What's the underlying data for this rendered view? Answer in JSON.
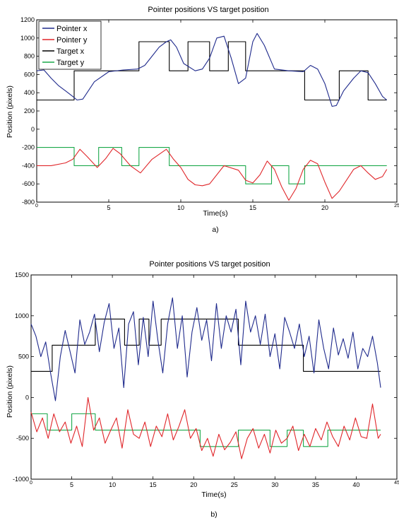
{
  "chart_data": [
    {
      "type": "line",
      "title": "Pointer positions VS target position",
      "xlabel": "Time(s)",
      "ylabel": "Position (pixels)",
      "xlim": [
        0,
        25
      ],
      "ylim": [
        -800,
        1200
      ],
      "xticks": [
        0,
        5,
        10,
        15,
        20,
        25
      ],
      "yticks": [
        -800,
        -600,
        -400,
        -200,
        0,
        200,
        400,
        600,
        800,
        1000,
        1200
      ],
      "grid": false,
      "legend": "top-left",
      "caption": "a)",
      "series": [
        {
          "name": "Pointer x",
          "color": "#1f2a8c",
          "x": [
            0,
            0.5,
            1,
            1.5,
            2,
            2.5,
            2.8,
            3.2,
            4,
            5,
            6,
            7,
            7.5,
            8,
            8.5,
            9,
            9.3,
            9.7,
            10.2,
            11,
            11.5,
            12,
            12.5,
            13,
            13.5,
            14,
            14.5,
            15,
            15.3,
            15.8,
            16.5,
            17.5,
            18.5,
            19,
            19.5,
            20,
            20.5,
            20.8,
            21.3,
            22,
            22.5,
            23,
            23.5,
            24,
            24.3
          ],
          "values": [
            640,
            650,
            560,
            480,
            420,
            360,
            320,
            330,
            520,
            630,
            650,
            660,
            700,
            800,
            900,
            960,
            980,
            900,
            720,
            640,
            660,
            780,
            1000,
            1020,
            780,
            500,
            560,
            960,
            1050,
            920,
            660,
            640,
            630,
            700,
            660,
            500,
            250,
            260,
            420,
            560,
            640,
            620,
            500,
            360,
            320
          ]
        },
        {
          "name": "Pointer y",
          "color": "#e0262a",
          "x": [
            0,
            1,
            2,
            2.5,
            3,
            3.5,
            4.2,
            4.8,
            5.3,
            5.8,
            6.5,
            7.2,
            8,
            9,
            9.5,
            10,
            10.5,
            11,
            11.5,
            12,
            13,
            14,
            14.5,
            15,
            15.5,
            16,
            16.5,
            17,
            17.5,
            18,
            18.5,
            19,
            19.5,
            20,
            20.5,
            21,
            22,
            22.5,
            23,
            23.5,
            24,
            24.3
          ],
          "values": [
            -400,
            -400,
            -370,
            -330,
            -220,
            -300,
            -420,
            -320,
            -210,
            -270,
            -400,
            -480,
            -330,
            -220,
            -330,
            -420,
            -550,
            -610,
            -620,
            -600,
            -400,
            -450,
            -560,
            -590,
            -500,
            -350,
            -440,
            -630,
            -780,
            -650,
            -440,
            -340,
            -380,
            -580,
            -760,
            -680,
            -440,
            -400,
            -480,
            -550,
            -520,
            -440
          ]
        },
        {
          "name": "Target x",
          "color": "#000000",
          "x": [
            0,
            2.6,
            2.6,
            7.1,
            7.1,
            9.2,
            9.2,
            10.5,
            10.5,
            12,
            12,
            13.3,
            13.3,
            14.5,
            14.5,
            18.6,
            18.6,
            21,
            21,
            23,
            23,
            24.3
          ],
          "values": [
            320,
            320,
            640,
            640,
            960,
            960,
            640,
            640,
            960,
            960,
            640,
            640,
            960,
            960,
            640,
            640,
            320,
            320,
            640,
            640,
            320,
            320
          ]
        },
        {
          "name": "Target y",
          "color": "#1aa84a",
          "x": [
            0,
            2.6,
            2.6,
            4.3,
            4.3,
            5.9,
            5.9,
            7.1,
            7.1,
            9.2,
            9.2,
            10.5,
            10.5,
            12,
            12,
            13.3,
            13.3,
            14.5,
            14.5,
            16.3,
            16.3,
            17.5,
            17.5,
            18.6,
            18.6,
            21,
            21,
            24.3
          ],
          "values": [
            -200,
            -200,
            -400,
            -400,
            -200,
            -200,
            -400,
            -400,
            -200,
            -200,
            -400,
            -400,
            -400,
            -400,
            -400,
            -400,
            -400,
            -400,
            -600,
            -600,
            -400,
            -400,
            -600,
            -600,
            -400,
            -400,
            -400,
            -400
          ]
        }
      ]
    },
    {
      "type": "line",
      "title": "Pointer positions VS target position",
      "xlabel": "Time(s)",
      "ylabel": "Position (pixels)",
      "xlim": [
        0,
        45
      ],
      "ylim": [
        -1000,
        1500
      ],
      "xticks": [
        0,
        5,
        10,
        15,
        20,
        25,
        30,
        35,
        40,
        45
      ],
      "yticks": [
        -1000,
        -500,
        0,
        500,
        1000,
        1500
      ],
      "grid": false,
      "caption": "b)",
      "series": [
        {
          "name": "Pointer x",
          "color": "#1f2a8c",
          "x": [
            0,
            0.6,
            1.2,
            1.8,
            2.4,
            3,
            3.6,
            4.2,
            4.8,
            5.4,
            6,
            6.6,
            7.2,
            7.8,
            8.4,
            9,
            9.6,
            10.2,
            10.8,
            11.4,
            12,
            12.6,
            13.2,
            13.8,
            14.4,
            15,
            15.6,
            16.2,
            16.8,
            17.4,
            18,
            18.6,
            19.2,
            19.8,
            20.4,
            21,
            21.6,
            22.2,
            22.8,
            23.4,
            24,
            24.6,
            25.2,
            25.8,
            26.4,
            27,
            27.6,
            28.2,
            28.8,
            29.4,
            30,
            30.6,
            31.2,
            31.8,
            32.4,
            33,
            33.6,
            34.2,
            34.8,
            35.4,
            36,
            36.6,
            37.2,
            37.8,
            38.4,
            39,
            39.6,
            40.2,
            40.8,
            41.4,
            42,
            42.6,
            43
          ],
          "values": [
            900,
            750,
            500,
            680,
            300,
            -40,
            500,
            820,
            560,
            300,
            950,
            650,
            800,
            1020,
            560,
            920,
            1150,
            600,
            850,
            120,
            900,
            1050,
            400,
            980,
            500,
            1180,
            700,
            300,
            900,
            1220,
            600,
            1000,
            250,
            800,
            1100,
            700,
            950,
            450,
            1150,
            600,
            1000,
            800,
            1080,
            400,
            1180,
            800,
            1000,
            650,
            1020,
            500,
            780,
            350,
            980,
            800,
            600,
            900,
            500,
            750,
            300,
            950,
            600,
            350,
            850,
            520,
            720,
            480,
            800,
            350,
            600,
            500,
            750,
            420,
            120
          ]
        },
        {
          "name": "Pointer y",
          "color": "#e0262a",
          "x": [
            0,
            0.7,
            1.4,
            2.1,
            2.8,
            3.5,
            4.2,
            4.9,
            5.6,
            6.3,
            7,
            7.7,
            8.4,
            9.1,
            9.8,
            10.5,
            11.2,
            11.9,
            12.6,
            13.3,
            14,
            14.7,
            15.4,
            16.1,
            16.8,
            17.5,
            18.2,
            18.9,
            19.6,
            20.3,
            21,
            21.7,
            22.4,
            23.1,
            23.8,
            24.5,
            25.2,
            25.9,
            26.6,
            27.3,
            28,
            28.7,
            29.4,
            30.1,
            30.8,
            31.5,
            32.2,
            32.9,
            33.6,
            34.3,
            35,
            35.7,
            36.4,
            37.1,
            37.8,
            38.5,
            39.2,
            39.9,
            40.6,
            41.3,
            42,
            42.7,
            43
          ],
          "values": [
            -180,
            -420,
            -250,
            -500,
            -200,
            -420,
            -300,
            -560,
            -350,
            -600,
            0,
            -400,
            -250,
            -560,
            -400,
            -250,
            -620,
            -150,
            -450,
            -500,
            -300,
            -600,
            -350,
            -480,
            -200,
            -520,
            -350,
            -150,
            -500,
            -380,
            -650,
            -500,
            -720,
            -450,
            -640,
            -550,
            -420,
            -750,
            -500,
            -380,
            -620,
            -450,
            -680,
            -400,
            -560,
            -500,
            -350,
            -650,
            -450,
            -600,
            -380,
            -520,
            -300,
            -480,
            -600,
            -350,
            -520,
            -250,
            -480,
            -500,
            -80,
            -500,
            -450
          ]
        },
        {
          "name": "Target x",
          "color": "#000000",
          "x": [
            0,
            2.6,
            2.6,
            7.9,
            7.9,
            11.5,
            11.5,
            13.3,
            13.3,
            14.5,
            14.5,
            16,
            16,
            20.1,
            20.1,
            25.5,
            25.5,
            28,
            28,
            33.5,
            33.5,
            36.5,
            36.5,
            41.3,
            41.3,
            43
          ],
          "values": [
            320,
            320,
            640,
            640,
            960,
            960,
            640,
            640,
            960,
            960,
            640,
            640,
            960,
            960,
            960,
            960,
            640,
            640,
            640,
            640,
            320,
            320,
            320,
            320,
            320,
            320
          ]
        },
        {
          "name": "Target y",
          "color": "#1aa84a",
          "x": [
            0,
            2,
            2,
            5,
            5,
            7.9,
            7.9,
            11.5,
            11.5,
            20.8,
            20.8,
            25.5,
            25.5,
            29.4,
            29.4,
            31.5,
            31.5,
            33.5,
            33.5,
            36.5,
            36.5,
            43
          ],
          "values": [
            -200,
            -200,
            -400,
            -400,
            -200,
            -200,
            -400,
            -400,
            -400,
            -400,
            -600,
            -600,
            -400,
            -400,
            -600,
            -600,
            -400,
            -400,
            -600,
            -600,
            -400,
            -400
          ]
        }
      ]
    }
  ]
}
